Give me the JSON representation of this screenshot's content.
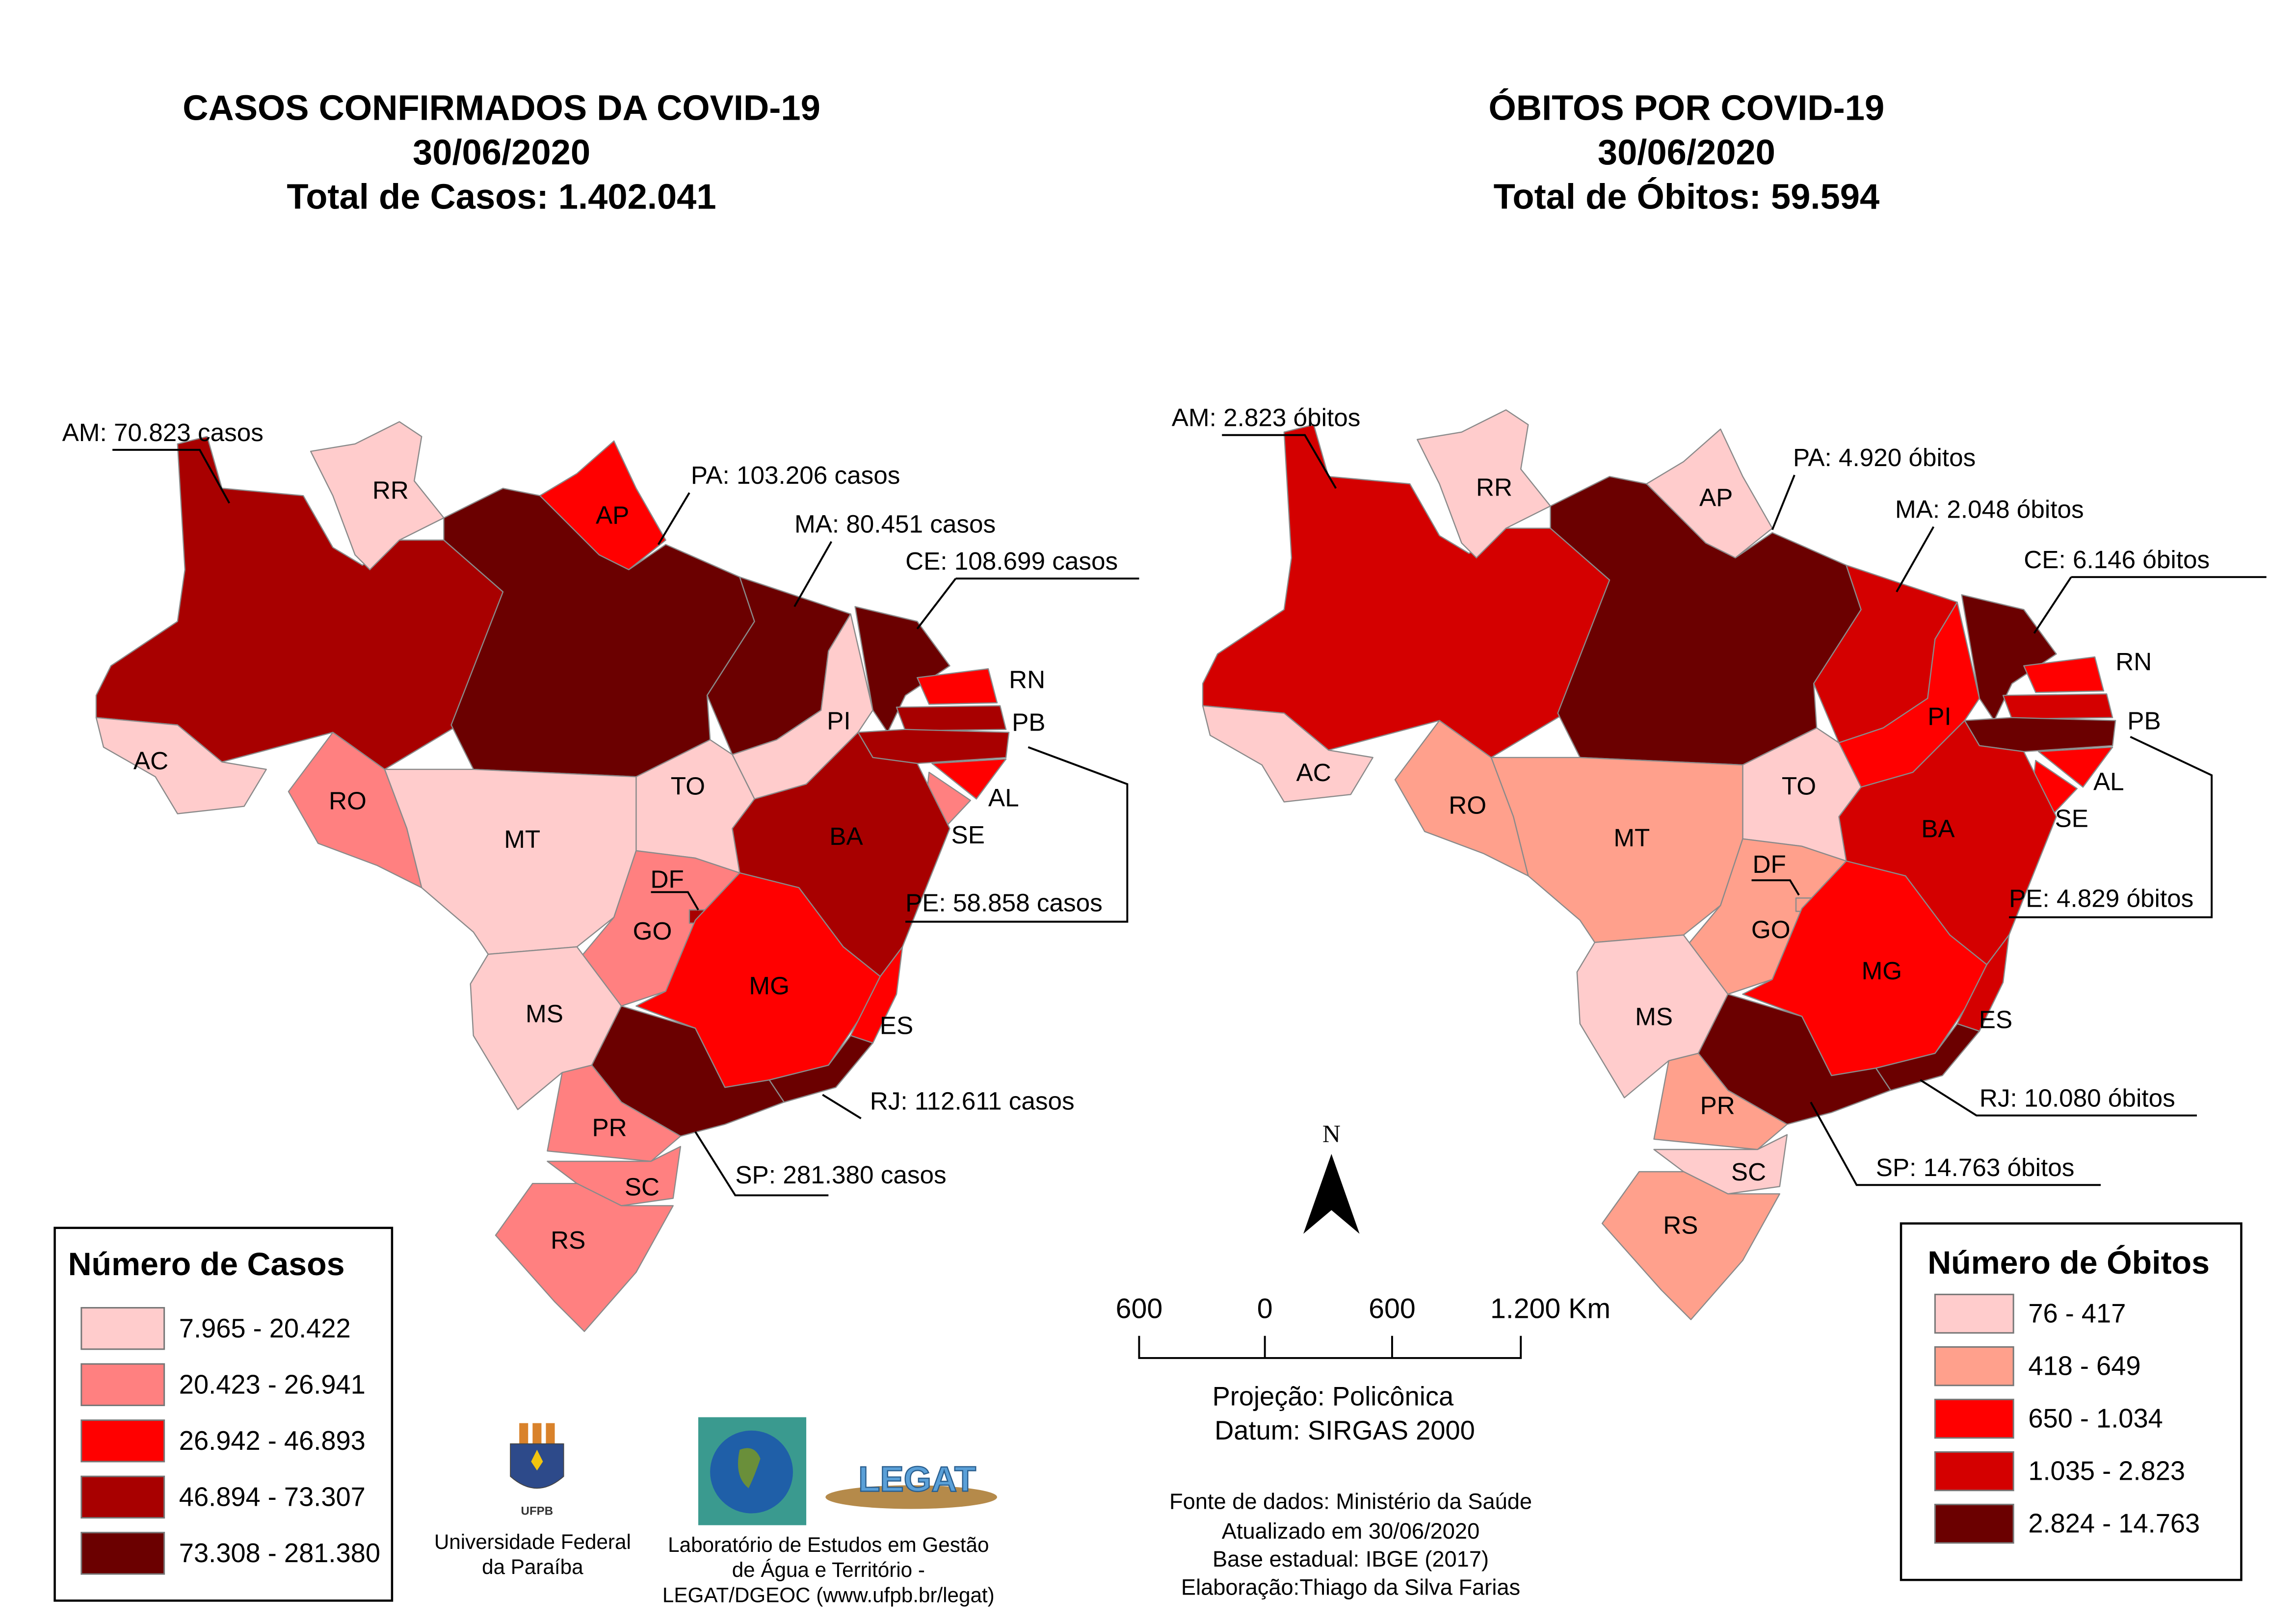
{
  "cases_map": {
    "title": [
      "CASOS CONFIRMADOS DA COVID-19",
      "30/06/2020",
      "Total de Casos: 1.402.041"
    ],
    "legend_title": "Número de Casos",
    "legend": [
      {
        "label": "7.965 - 20.422",
        "color": "#ffcccc"
      },
      {
        "label": "20.423 - 26.941",
        "color": "#ff8080"
      },
      {
        "label": "26.942 - 46.893",
        "color": "#ff0000"
      },
      {
        "label": "46.894 - 73.307",
        "color": "#a80000"
      },
      {
        "label": "73.308 - 281.380",
        "color": "#6b0000"
      }
    ],
    "callouts": {
      "AM": "AM: 70.823 casos",
      "PA": "PA: 103.206 casos",
      "MA": "MA: 80.451 casos",
      "CE": "CE: 108.699 casos",
      "PE": "PE: 58.858  casos",
      "RJ": "RJ: 112.611 casos",
      "SP": "SP: 281.380 casos"
    }
  },
  "deaths_map": {
    "title": [
      "ÓBITOS POR COVID-19",
      "30/06/2020",
      "Total de Óbitos: 59.594"
    ],
    "legend_title": "Número de Óbitos",
    "legend": [
      {
        "label": "76 - 417",
        "color": "#ffcccc"
      },
      {
        "label": "418 - 649",
        "color": "#ffa08c"
      },
      {
        "label": "650 - 1.034",
        "color": "#ff0000"
      },
      {
        "label": "1.035 - 2.823",
        "color": "#d40000"
      },
      {
        "label": "2.824 - 14.763",
        "color": "#6b0000"
      }
    ],
    "callouts": {
      "AM": "AM: 2.823 óbitos",
      "PA": "PA: 4.920 óbitos",
      "MA": "MA: 2.048 óbitos",
      "CE": "CE: 6.146 óbitos",
      "PE": "PE: 4.829 óbitos",
      "RJ": "RJ: 10.080 óbitos",
      "SP": "SP: 14.763 óbitos"
    }
  },
  "states": [
    {
      "code": "AM",
      "cases_class": 3,
      "deaths_class": 3
    },
    {
      "code": "AC",
      "cases_class": 0,
      "deaths_class": 0
    },
    {
      "code": "RR",
      "cases_class": 0,
      "deaths_class": 0
    },
    {
      "code": "AP",
      "cases_class": 2,
      "deaths_class": 0
    },
    {
      "code": "PA",
      "cases_class": 4,
      "deaths_class": 4
    },
    {
      "code": "MA",
      "cases_class": 4,
      "deaths_class": 3
    },
    {
      "code": "PI",
      "cases_class": 0,
      "deaths_class": 2
    },
    {
      "code": "CE",
      "cases_class": 4,
      "deaths_class": 4
    },
    {
      "code": "RN",
      "cases_class": 2,
      "deaths_class": 2
    },
    {
      "code": "PB",
      "cases_class": 3,
      "deaths_class": 3
    },
    {
      "code": "PE",
      "cases_class": 3,
      "deaths_class": 4
    },
    {
      "code": "AL",
      "cases_class": 2,
      "deaths_class": 2
    },
    {
      "code": "SE",
      "cases_class": 1,
      "deaths_class": 2
    },
    {
      "code": "BA",
      "cases_class": 3,
      "deaths_class": 3
    },
    {
      "code": "TO",
      "cases_class": 0,
      "deaths_class": 0
    },
    {
      "code": "MT",
      "cases_class": 0,
      "deaths_class": 1
    },
    {
      "code": "RO",
      "cases_class": 1,
      "deaths_class": 1
    },
    {
      "code": "GO",
      "cases_class": 1,
      "deaths_class": 1
    },
    {
      "code": "DF",
      "cases_class": 3,
      "deaths_class": 1
    },
    {
      "code": "MS",
      "cases_class": 0,
      "deaths_class": 0
    },
    {
      "code": "MG",
      "cases_class": 2,
      "deaths_class": 2
    },
    {
      "code": "ES",
      "cases_class": 2,
      "deaths_class": 3
    },
    {
      "code": "RJ",
      "cases_class": 4,
      "deaths_class": 4
    },
    {
      "code": "SP",
      "cases_class": 4,
      "deaths_class": 4
    },
    {
      "code": "PR",
      "cases_class": 1,
      "deaths_class": 1
    },
    {
      "code": "SC",
      "cases_class": 1,
      "deaths_class": 0
    },
    {
      "code": "RS",
      "cases_class": 1,
      "deaths_class": 1
    }
  ],
  "north_label": "N",
  "scale_bar": {
    "labels": [
      "600",
      "0",
      "600",
      "1.200 Km"
    ]
  },
  "projection": [
    "Projeção: Policônica",
    "Datum: SIRGAS 2000"
  ],
  "credits": [
    "Fonte de dados: Ministério da Saúde",
    "Atualizado em 30/06/2020",
    "Base estadual: IBGE (2017)",
    "Elaboração:Thiago da Silva Farias"
  ],
  "ufpb": {
    "logo_text": "UFPB",
    "name": [
      "Universidade Federal",
      "da Paraíba"
    ]
  },
  "legat": {
    "logo_text": "LEGAT",
    "name": [
      "Laboratório de Estudos em Gestão",
      "de Água e Território -",
      "LEGAT/DGEOC (www.ufpb.br/legat)"
    ]
  }
}
